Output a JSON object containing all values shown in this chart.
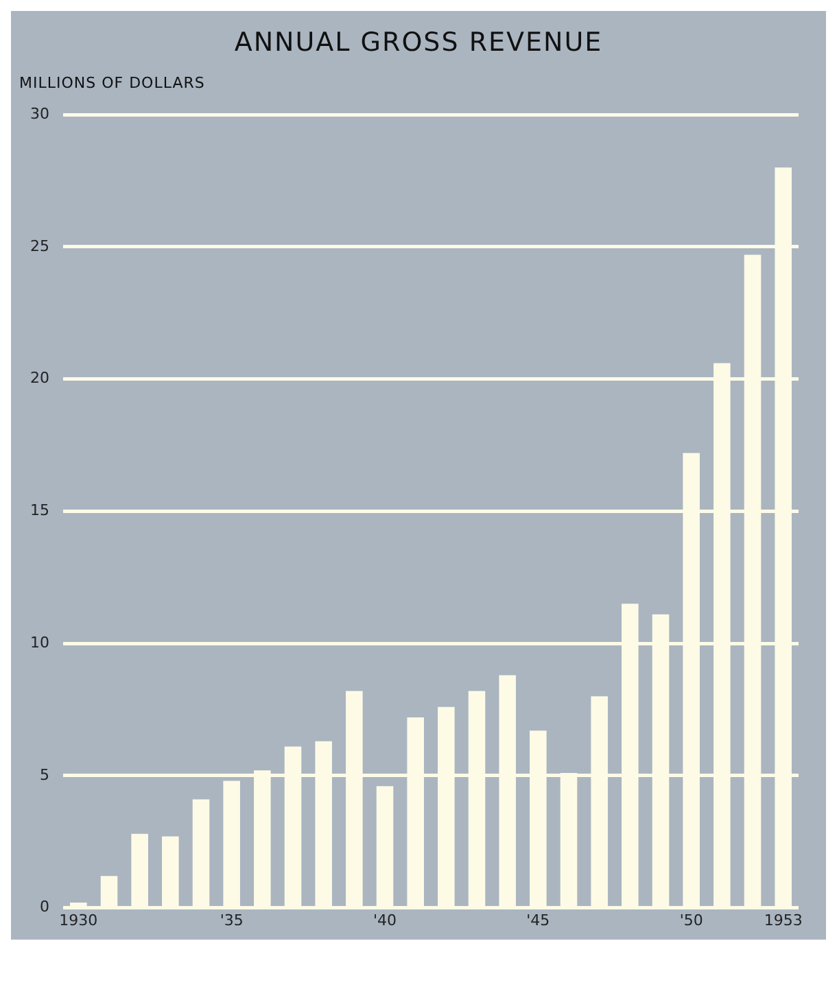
{
  "chart_data": {
    "type": "bar",
    "title": "ANNUAL GROSS REVENUE",
    "ylabel": "MILLIONS OF DOLLARS",
    "categories": [
      "1930",
      null,
      null,
      null,
      null,
      "'35",
      null,
      null,
      null,
      null,
      "'40",
      null,
      null,
      null,
      null,
      "'45",
      null,
      null,
      null,
      null,
      "'50",
      null,
      null,
      "1953"
    ],
    "values": [
      0.2,
      1.2,
      2.8,
      2.7,
      4.1,
      4.8,
      5.2,
      6.1,
      6.3,
      8.2,
      4.6,
      7.2,
      7.6,
      8.2,
      8.8,
      6.7,
      5.1,
      8.0,
      11.5,
      11.1,
      17.2,
      20.6,
      24.7,
      28.0
    ],
    "color": "#fdfbe6",
    "ylim": [
      0,
      30
    ],
    "yticks": [
      0,
      5,
      10,
      15,
      20,
      25,
      30
    ],
    "grid": "y"
  }
}
